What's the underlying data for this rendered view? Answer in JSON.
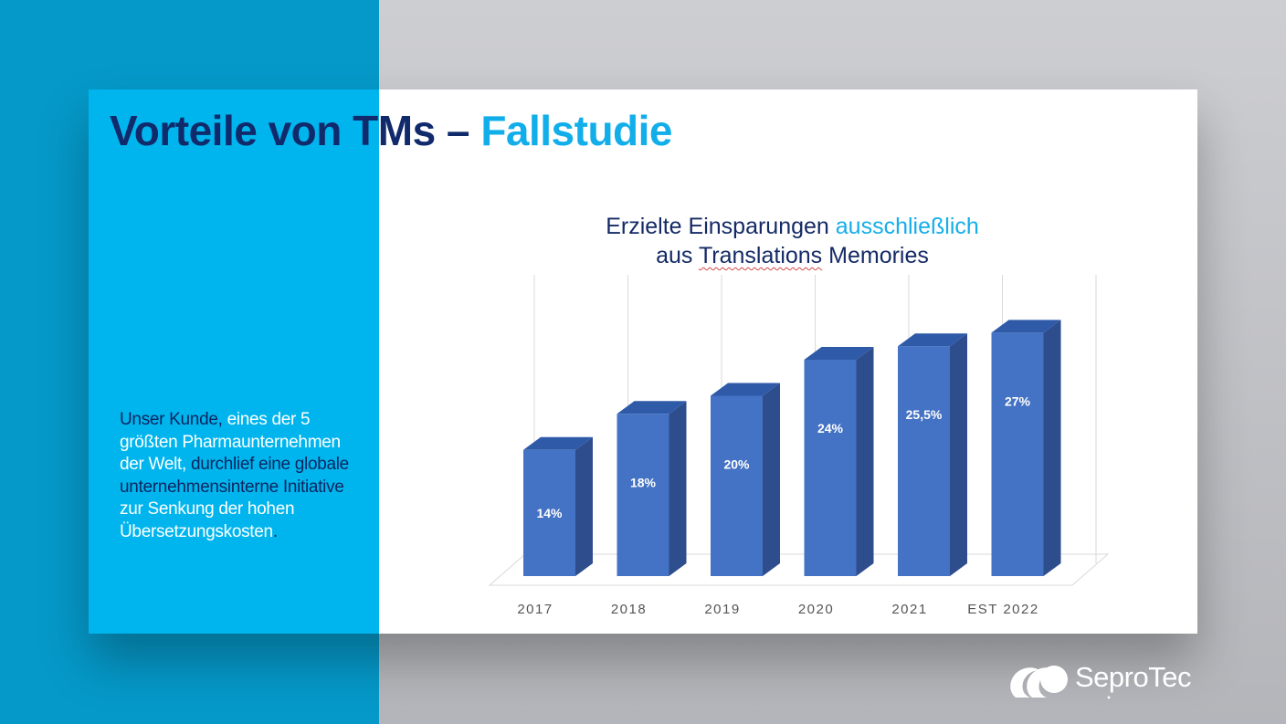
{
  "slide": {
    "title_main": "Vorteile von TMs –",
    "title_accent": "Fallstudie"
  },
  "description": {
    "p1": "Unser Kunde, ",
    "h1": "eines der 5 größten Pharmaunternehmen der Welt,",
    "p2": " durchlief eine globale unternehmensinterne Initiative ",
    "h2": "zur Senkung der hohen Übersetzungskosten",
    "p3": "."
  },
  "chart_title": {
    "line1_a": "Erzielte Einsparungen ",
    "line1_b": "ausschließlich",
    "line2_a": "aus ",
    "line2_b": "Translations",
    "line2_c": " Memories"
  },
  "chart_data": {
    "type": "bar",
    "categories": [
      "2017",
      "2018",
      "2019",
      "2020",
      "2021",
      "EST 2022"
    ],
    "values": [
      14,
      18,
      20,
      24,
      25.5,
      27
    ],
    "data_labels": [
      "14%",
      "18%",
      "20%",
      "24%",
      "25,5%",
      "27%"
    ],
    "ylim": [
      0,
      32
    ],
    "grid": "vertical",
    "legend": "none",
    "bar_color": "#4472c4",
    "bar_side_color": "#2e4d8c",
    "bar_top_color": "#2f5aa8"
  },
  "logo": {
    "text": "SeproTec"
  },
  "colors": {
    "navy": "#102a6b",
    "cyan": "#00b5ee",
    "background_blue": "#0599c9"
  }
}
